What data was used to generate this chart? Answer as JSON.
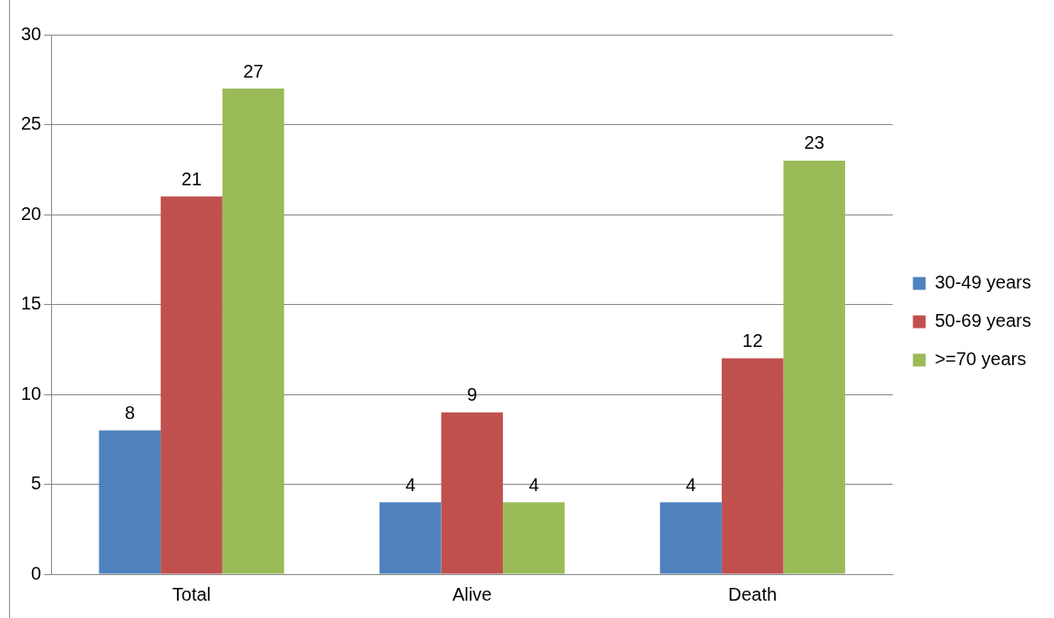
{
  "chart_data": {
    "type": "bar",
    "categories": [
      "Total",
      "Alive",
      "Death"
    ],
    "series": [
      {
        "name": "30-49 years",
        "color": "#4f81bd",
        "values": [
          8,
          4,
          4
        ]
      },
      {
        "name": "50-69 years",
        "color": "#c0504d",
        "values": [
          21,
          9,
          12
        ]
      },
      {
        "name": ">=70 years",
        "color": "#9bbb59",
        "values": [
          27,
          4,
          23
        ]
      }
    ],
    "ylim": [
      0,
      30
    ],
    "yticks": [
      0,
      5,
      10,
      15,
      20,
      25,
      30
    ],
    "grid": "y",
    "legend": "right",
    "data_labels": true
  }
}
